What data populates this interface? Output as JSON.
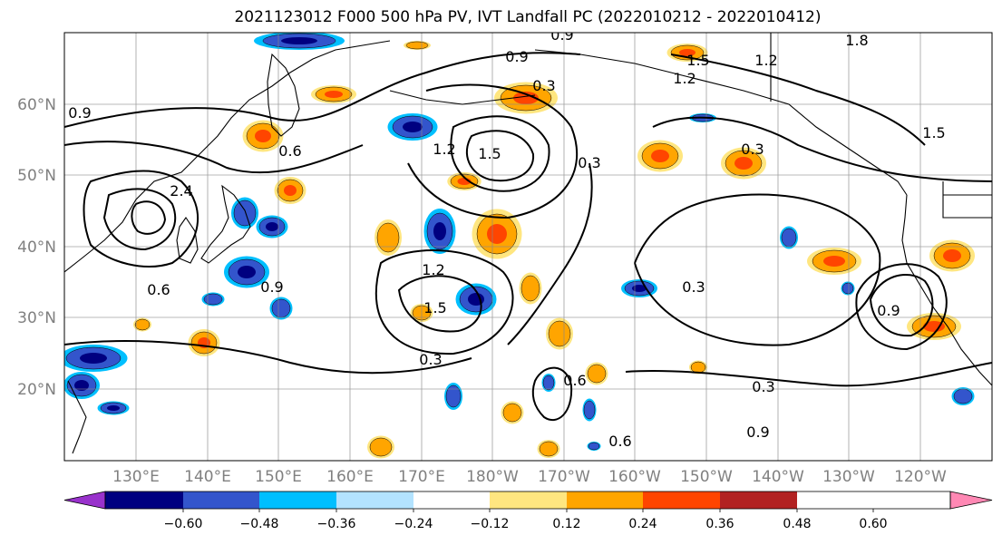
{
  "title": "2021123012 F000 500 hPa PV, IVT Landfall PC (2022010212 - 2022010412)",
  "lat_labels": [
    "60°N",
    "50°N",
    "40°N",
    "30°N",
    "20°N"
  ],
  "lon_labels": [
    "130°E",
    "140°E",
    "150°E",
    "160°E",
    "170°E",
    "180°W",
    "170°W",
    "160°W",
    "150°W",
    "140°W",
    "130°W",
    "120°W"
  ],
  "colorbar": {
    "ticks": [
      "−0.60",
      "−0.48",
      "−0.36",
      "−0.24",
      "−0.12",
      "0.12",
      "0.24",
      "0.36",
      "0.48",
      "0.60"
    ],
    "colors": [
      "#9932cc",
      "#000080",
      "#3355cc",
      "#00bfff",
      "#b3e3ff",
      "#ffffff",
      "#ffe680",
      "#ffa500",
      "#ff4500",
      "#b22222",
      "#ff88b4"
    ]
  },
  "contour_labels": [
    "0.9",
    "0.9",
    "0.9",
    "1.2",
    "1.5",
    "1.8",
    "0.3",
    "1.2",
    "1.5",
    "1.2",
    "0.9",
    "1.5",
    "0.6",
    "2.4",
    "0.6",
    "0.9",
    "1.2",
    "1.5",
    "0.3",
    "0.3",
    "0.3",
    "0.6",
    "0.3",
    "0.3",
    "0.6",
    "0.9"
  ],
  "shading_colors": {
    "neg_light": "#00bfff",
    "neg_mid": "#3355cc",
    "neg_dark": "#000080",
    "pos_light": "#ffe680",
    "pos_mid": "#ffa500",
    "pos_dark": "#ff4500"
  }
}
